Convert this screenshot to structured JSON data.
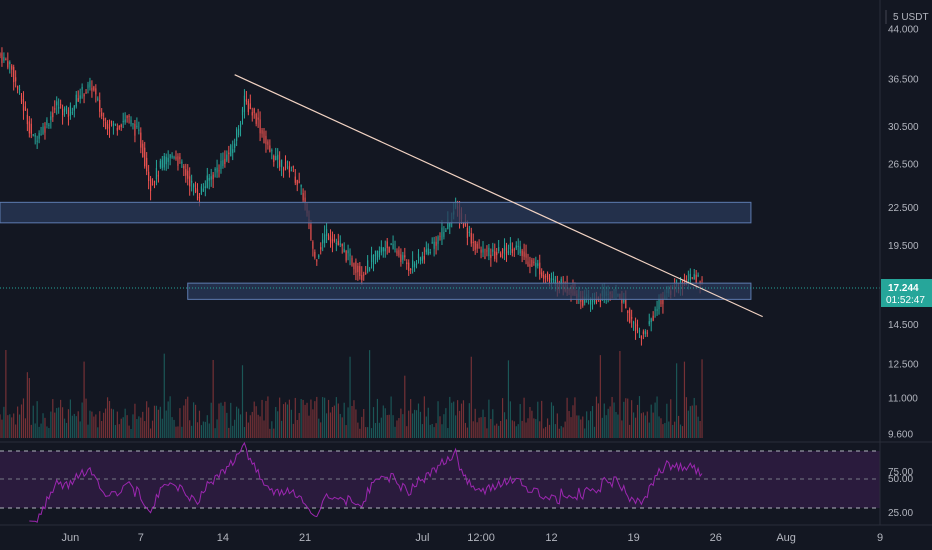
{
  "header": {
    "currency_label": "5 USDT"
  },
  "price_axis": {
    "ticks": [
      "44.000",
      "36.500",
      "30.500",
      "26.500",
      "22.500",
      "19.500",
      "14.500",
      "12.500",
      "11.000",
      "9.600"
    ]
  },
  "last_price": {
    "value": "17.244",
    "countdown": "01:52:47",
    "color": "#26a69a"
  },
  "rsi_axis": {
    "ticks": [
      "75.00",
      "50.00",
      "25.00"
    ]
  },
  "time_axis": {
    "ticks": [
      "Jun",
      "7",
      "14",
      "21",
      "Jul",
      "12:00",
      "12",
      "19",
      "26",
      "Aug",
      "9"
    ]
  },
  "colors": {
    "background": "#131722",
    "up": "#26a69a",
    "down": "#ef5350",
    "zone_fill": "#2a3a5a",
    "zone_stroke": "#5d7bb0",
    "trendline": "#f2d3c3",
    "rsi_line": "#9c27b0",
    "rsi_band": "#2a1b3d"
  },
  "chart_data": {
    "type": "candlestick",
    "symbol_quote": "USDT",
    "x_range": [
      "2021-05-26",
      "2021-08-09"
    ],
    "y_scale": "log",
    "ylim": [
      9.3,
      49
    ],
    "close_series_anchors": [
      [
        "2021-05-26",
        40.0
      ],
      [
        "2021-05-27",
        38.5
      ],
      [
        "2021-05-28",
        33.5
      ],
      [
        "2021-05-29",
        29.0
      ],
      [
        "2021-05-30",
        30.5
      ],
      [
        "2021-05-31",
        33.0
      ],
      [
        "2021-06-01",
        32.0
      ],
      [
        "2021-06-02",
        34.5
      ],
      [
        "2021-06-03",
        35.5
      ],
      [
        "2021-06-04",
        31.0
      ],
      [
        "2021-06-05",
        30.5
      ],
      [
        "2021-06-06",
        31.5
      ],
      [
        "2021-06-07",
        29.5
      ],
      [
        "2021-06-08",
        24.5
      ],
      [
        "2021-06-09",
        26.5
      ],
      [
        "2021-06-10",
        27.5
      ],
      [
        "2021-06-11",
        25.5
      ],
      [
        "2021-06-12",
        23.5
      ],
      [
        "2021-06-13",
        25.0
      ],
      [
        "2021-06-14",
        26.5
      ],
      [
        "2021-06-15",
        28.0
      ],
      [
        "2021-06-16",
        33.5
      ],
      [
        "2021-06-17",
        31.5
      ],
      [
        "2021-06-18",
        28.0
      ],
      [
        "2021-06-19",
        26.5
      ],
      [
        "2021-06-20",
        26.0
      ],
      [
        "2021-06-21",
        23.5
      ],
      [
        "2021-06-22",
        18.5
      ],
      [
        "2021-06-23",
        20.5
      ],
      [
        "2021-06-24",
        19.5
      ],
      [
        "2021-06-25",
        18.5
      ],
      [
        "2021-06-26",
        17.5
      ],
      [
        "2021-06-27",
        18.5
      ],
      [
        "2021-06-28",
        19.5
      ],
      [
        "2021-06-29",
        19.0
      ],
      [
        "2021-06-30",
        18.0
      ],
      [
        "2021-07-01",
        18.5
      ],
      [
        "2021-07-02",
        19.5
      ],
      [
        "2021-07-03",
        20.5
      ],
      [
        "2021-07-04",
        22.5
      ],
      [
        "2021-07-05",
        20.5
      ],
      [
        "2021-07-06",
        19.0
      ],
      [
        "2021-07-07",
        18.8
      ],
      [
        "2021-07-08",
        19.0
      ],
      [
        "2021-07-09",
        19.5
      ],
      [
        "2021-07-10",
        18.5
      ],
      [
        "2021-07-11",
        18.0
      ],
      [
        "2021-07-12",
        17.0
      ],
      [
        "2021-07-13",
        16.8
      ],
      [
        "2021-07-14",
        16.5
      ],
      [
        "2021-07-15",
        15.8
      ],
      [
        "2021-07-16",
        15.9
      ],
      [
        "2021-07-17",
        16.3
      ],
      [
        "2021-07-18",
        16.2
      ],
      [
        "2021-07-19",
        14.7
      ],
      [
        "2021-07-20",
        13.8
      ],
      [
        "2021-07-21",
        15.3
      ],
      [
        "2021-07-22",
        16.3
      ],
      [
        "2021-07-23",
        16.8
      ],
      [
        "2021-07-24",
        17.2
      ],
      [
        "2021-07-25",
        17.244
      ]
    ],
    "volume_relative": "bars shown without scale",
    "indicators": {
      "rsi": {
        "levels": [
          75,
          50,
          25
        ],
        "approx_last_value": 58
      }
    },
    "drawings": {
      "trendline": {
        "from": [
          "2021-06-15",
          37.0
        ],
        "to": [
          "2021-07-30",
          14.9
        ]
      },
      "zones": [
        {
          "from": "2021-05-26",
          "to": "2021-07-29",
          "low": 21.2,
          "high": 22.9
        },
        {
          "from": "2021-06-11",
          "to": "2021-07-29",
          "low": 15.9,
          "high": 16.9
        }
      ]
    }
  }
}
